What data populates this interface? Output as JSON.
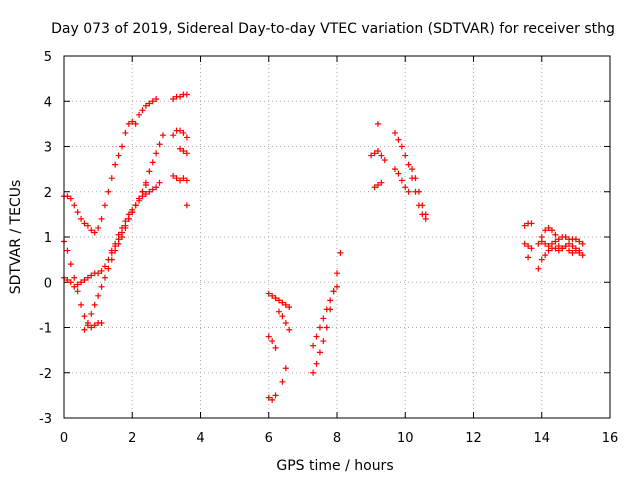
{
  "chart_data": {
    "type": "scatter",
    "title": "Day 073 of 2019, Sidereal Day-to-day VTEC variation (SDTVAR) for receiver sthg",
    "xlabel": "GPS time / hours",
    "ylabel": "SDTVAR / TECUs",
    "xlim": [
      0,
      16
    ],
    "ylim": [
      -3,
      5
    ],
    "xticks": [
      "0",
      "2",
      "4",
      "6",
      "8",
      "10",
      "12",
      "14",
      "16"
    ],
    "yticks": [
      "-3",
      "-2",
      "-1",
      "0",
      "1",
      "2",
      "3",
      "4",
      "5"
    ],
    "grid": true,
    "marker": "+",
    "color": "#ff0000",
    "series": [
      {
        "x": [
          0.0,
          0.1,
          0.2,
          0.3,
          0.4,
          0.5,
          0.6,
          0.7,
          0.8,
          0.9,
          1.0,
          1.1,
          1.2,
          1.3,
          1.4,
          1.5,
          1.6,
          1.7,
          1.8,
          1.9,
          2.0,
          2.1
        ],
        "y": [
          1.9,
          1.9,
          1.85,
          1.7,
          1.55,
          1.4,
          1.3,
          1.25,
          1.15,
          1.1,
          1.2,
          1.4,
          1.7,
          2.0,
          2.3,
          2.6,
          2.8,
          3.0,
          3.3,
          3.5,
          3.55,
          3.5
        ]
      },
      {
        "x": [
          0.0,
          0.1,
          0.2,
          0.3,
          0.4,
          0.5,
          0.6,
          0.7,
          0.8,
          0.9,
          1.0,
          1.1
        ],
        "y": [
          0.9,
          0.7,
          0.4,
          0.1,
          -0.2,
          -0.5,
          -0.75,
          -0.95,
          -1.0,
          -0.95,
          -0.9,
          -0.9
        ]
      },
      {
        "x": [
          0.0,
          0.1,
          0.2,
          0.3,
          0.4,
          0.5,
          0.6,
          0.7,
          0.8,
          0.9,
          1.0,
          1.1,
          1.2,
          1.3,
          1.4,
          1.5,
          1.6,
          1.7,
          1.8,
          1.9,
          2.0,
          2.1,
          2.2,
          2.3,
          2.4
        ],
        "y": [
          0.1,
          0.05,
          0.0,
          -0.1,
          -0.05,
          0.0,
          0.05,
          0.1,
          0.15,
          0.2,
          0.2,
          0.25,
          0.35,
          0.5,
          0.65,
          0.8,
          0.95,
          1.1,
          1.25,
          1.4,
          1.55,
          1.7,
          1.85,
          2.0,
          2.15
        ]
      },
      {
        "x": [
          0.6,
          0.7,
          0.8,
          0.9,
          1.0,
          1.1,
          1.2,
          1.3,
          1.4,
          1.5,
          1.6,
          1.7,
          1.8,
          1.9,
          2.0,
          2.1,
          2.2,
          2.3,
          2.4,
          2.5,
          2.6,
          2.7,
          2.8,
          2.9
        ],
        "y": [
          -1.05,
          -0.9,
          -0.7,
          -0.5,
          -0.3,
          -0.1,
          0.1,
          0.3,
          0.5,
          0.7,
          0.85,
          1.0,
          1.2,
          1.4,
          1.55,
          1.7,
          1.85,
          2.0,
          2.2,
          2.45,
          2.65,
          2.85,
          3.05,
          3.25
        ]
      },
      {
        "x": [
          2.2,
          2.3,
          2.4,
          2.5,
          2.6,
          2.7
        ],
        "y": [
          3.7,
          3.8,
          3.9,
          3.95,
          4.0,
          4.05
        ]
      },
      {
        "x": [
          1.4,
          1.5,
          1.6,
          1.7,
          1.8,
          1.9,
          2.0,
          2.1,
          2.2,
          2.3,
          2.4,
          2.5,
          2.6,
          2.7,
          2.8
        ],
        "y": [
          0.7,
          0.85,
          1.05,
          1.2,
          1.35,
          1.5,
          1.6,
          1.7,
          1.8,
          1.9,
          1.95,
          2.0,
          2.05,
          2.1,
          2.2
        ]
      },
      {
        "x": [
          3.2,
          3.3,
          3.4,
          3.5,
          3.6
        ],
        "y": [
          4.05,
          4.1,
          4.1,
          4.15,
          4.15
        ]
      },
      {
        "x": [
          3.2,
          3.3,
          3.4,
          3.5,
          3.6,
          3.4,
          3.5,
          3.6
        ],
        "y": [
          3.25,
          3.35,
          3.35,
          3.3,
          3.2,
          2.95,
          2.9,
          2.85
        ]
      },
      {
        "x": [
          3.2,
          3.3,
          3.4,
          3.5,
          3.6,
          3.6
        ],
        "y": [
          2.35,
          2.3,
          2.25,
          2.3,
          2.25,
          1.7
        ]
      },
      {
        "x": [
          6.0,
          6.1,
          6.2,
          6.3,
          6.4,
          6.5,
          6.6,
          6.3,
          6.4,
          6.5,
          6.6
        ],
        "y": [
          -0.25,
          -0.3,
          -0.35,
          -0.4,
          -0.45,
          -0.5,
          -0.55,
          -0.65,
          -0.75,
          -0.9,
          -1.05
        ]
      },
      {
        "x": [
          6.0,
          6.1,
          6.2,
          6.0,
          6.1,
          6.2,
          6.4,
          6.5
        ],
        "y": [
          -1.2,
          -1.3,
          -1.45,
          -2.55,
          -2.6,
          -2.5,
          -2.2,
          -1.9
        ]
      },
      {
        "x": [
          7.3,
          7.4,
          7.5,
          7.6,
          7.7,
          7.8,
          7.9,
          8.0,
          8.1
        ],
        "y": [
          -2.0,
          -1.8,
          -1.55,
          -1.3,
          -1.0,
          -0.6,
          -0.2,
          0.2,
          0.65
        ]
      },
      {
        "x": [
          7.3,
          7.4,
          7.5,
          7.6,
          7.7,
          7.8,
          7.9,
          8.0
        ],
        "y": [
          -1.4,
          -1.2,
          -1.0,
          -0.8,
          -0.6,
          -0.4,
          -0.2,
          -0.1
        ]
      },
      {
        "x": [
          9.0,
          9.1,
          9.2,
          9.3,
          9.4,
          9.1,
          9.2,
          9.3,
          9.2
        ],
        "y": [
          2.8,
          2.85,
          2.9,
          2.8,
          2.7,
          2.1,
          2.15,
          2.2,
          3.5
        ]
      },
      {
        "x": [
          9.7,
          9.8,
          9.9,
          10.0,
          10.1,
          10.2,
          10.3,
          10.4,
          10.5,
          10.6
        ],
        "y": [
          3.3,
          3.15,
          3.0,
          2.8,
          2.6,
          2.3,
          2.0,
          1.7,
          1.5,
          1.4
        ]
      },
      {
        "x": [
          9.7,
          9.8,
          9.9,
          10.0,
          10.1,
          10.2,
          10.3,
          10.4,
          10.5,
          10.6
        ],
        "y": [
          2.5,
          2.4,
          2.25,
          2.1,
          2.0,
          2.5,
          2.3,
          2.0,
          1.7,
          1.5
        ]
      },
      {
        "x": [
          13.5,
          13.6,
          13.7,
          13.5,
          13.6,
          13.7,
          13.6
        ],
        "y": [
          1.25,
          1.3,
          1.3,
          0.85,
          0.8,
          0.75,
          0.55
        ]
      },
      {
        "x": [
          13.9,
          14.0,
          14.1,
          14.2,
          14.3,
          14.4,
          14.5,
          14.6,
          14.7,
          14.8,
          14.9,
          15.0,
          15.1,
          15.2
        ],
        "y": [
          0.85,
          1.0,
          1.15,
          1.2,
          1.15,
          1.05,
          0.95,
          1.0,
          1.0,
          0.95,
          0.95,
          0.95,
          0.9,
          0.85
        ]
      },
      {
        "x": [
          13.9,
          14.0,
          14.1,
          14.2,
          14.3,
          14.4,
          14.5,
          14.6,
          14.7,
          14.8,
          14.9,
          15.0,
          15.1,
          15.2
        ],
        "y": [
          0.3,
          0.5,
          0.6,
          0.7,
          0.75,
          0.75,
          0.7,
          0.75,
          0.8,
          0.7,
          0.65,
          0.7,
          0.65,
          0.6
        ]
      },
      {
        "x": [
          14.0,
          14.1,
          14.2,
          14.3,
          14.4,
          14.5,
          14.6,
          14.7,
          14.8,
          14.9,
          15.0,
          15.1
        ],
        "y": [
          0.9,
          0.85,
          0.8,
          0.85,
          0.9,
          0.8,
          0.75,
          0.8,
          0.85,
          0.8,
          0.75,
          0.7
        ]
      }
    ]
  }
}
